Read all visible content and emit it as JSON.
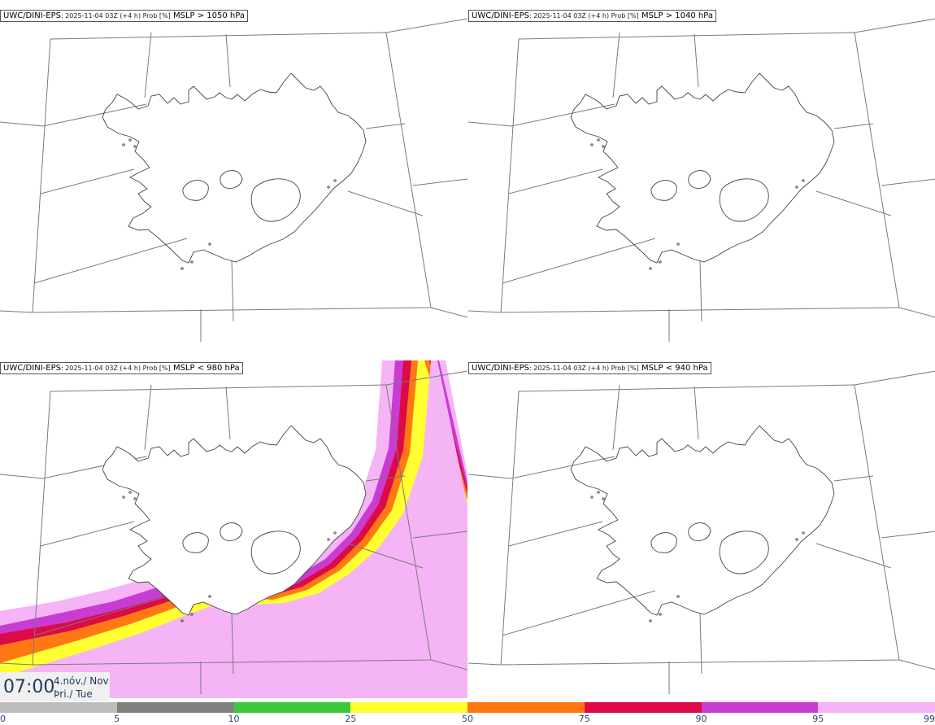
{
  "panels": [
    {
      "model": "UWC/DINI-EPS",
      "meta": ": 2025-11-04 03Z (+4 h) Prob [%]",
      "condition": "MSLP > 1050 hPa",
      "filled": false
    },
    {
      "model": "UWC/DINI-EPS",
      "meta": ": 2025-11-04 03Z (+4 h) Prob [%]",
      "condition": "MSLP > 1040 hPa",
      "filled": false
    },
    {
      "model": "UWC/DINI-EPS",
      "meta": ": 2025-11-04 03Z (+4 h) Prob [%]",
      "condition": "MSLP < 980 hPa",
      "filled": true
    },
    {
      "model": "UWC/DINI-EPS",
      "meta": ": 2025-11-04 03Z (+4 h) Prob [%]",
      "condition": "MSLP < 940 hPa",
      "filled": false
    }
  ],
  "time": {
    "clock": "07:00",
    "date_line1": "4.nóv./ Nov",
    "date_line2": "Þri./ Tue"
  },
  "colorbar": {
    "ticks": [
      "0",
      "5",
      "10",
      "25",
      "50",
      "75",
      "90",
      "95",
      "99"
    ],
    "colors": [
      "#ffffff",
      "#bdbdbd",
      "#808080",
      "#3cc83c",
      "#ffff32",
      "#ff7814",
      "#dc0a46",
      "#c83cd2",
      "#f5b4f5"
    ]
  }
}
